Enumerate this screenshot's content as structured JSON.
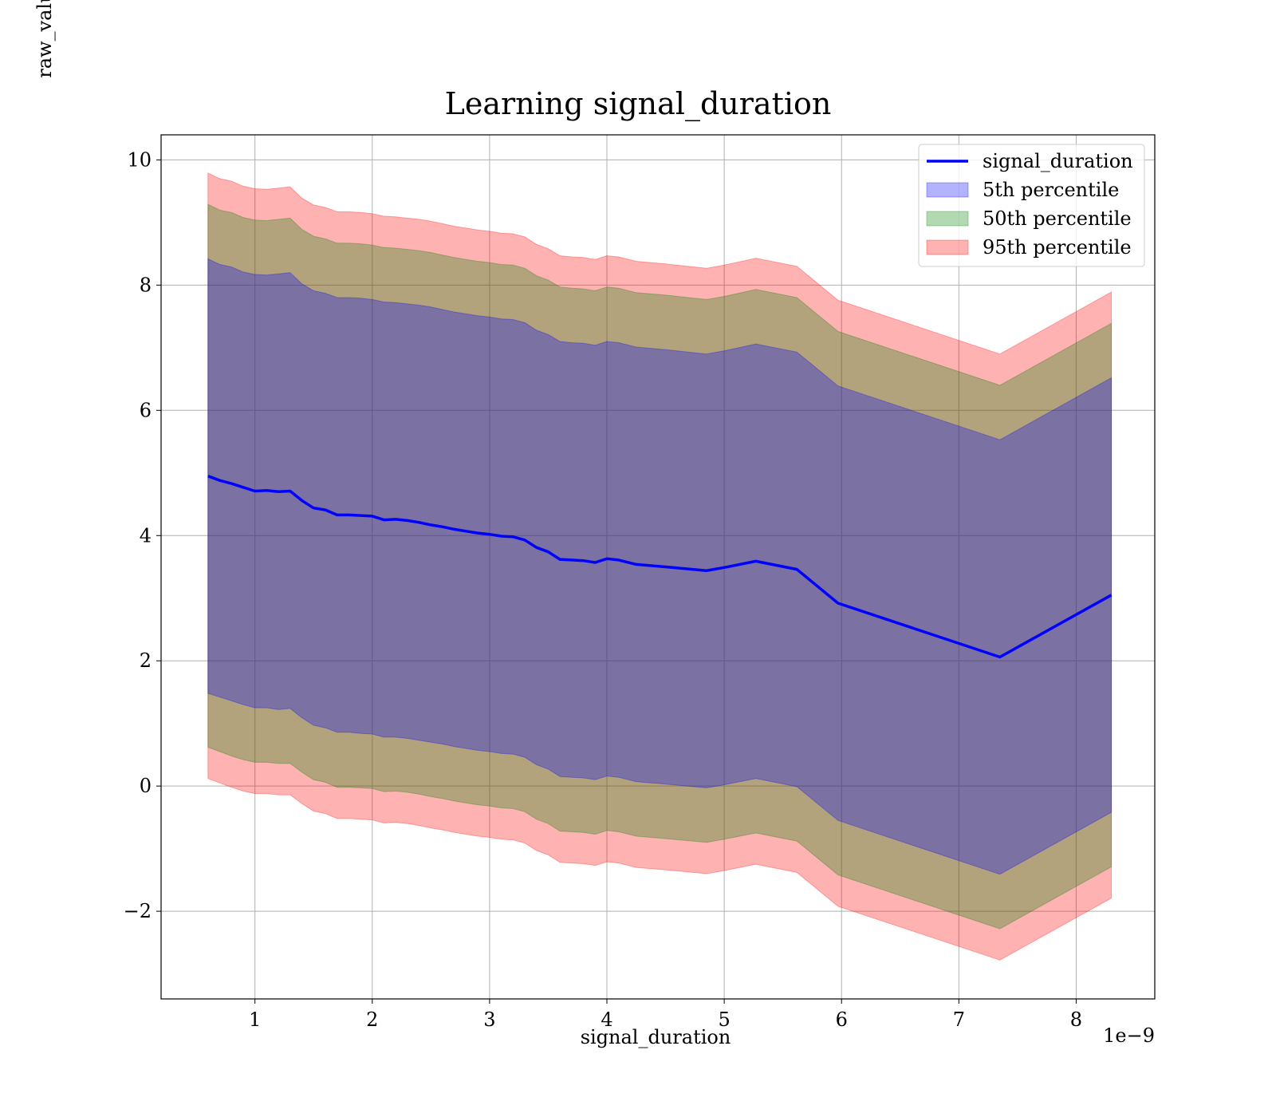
{
  "chart_data": {
    "type": "area",
    "title": "Learning signal_duration",
    "xlabel": "signal_duration",
    "ylabel": "raw_value",
    "x_offset_label": "1e−9",
    "x_scale": 1e-09,
    "xlim": [
      0.2,
      8.67
    ],
    "ylim": [
      -3.4,
      10.4
    ],
    "x_ticks": [
      1,
      2,
      3,
      4,
      5,
      6,
      7,
      8
    ],
    "y_ticks": [
      -2,
      0,
      2,
      4,
      6,
      8,
      10
    ],
    "y_tick_labels": [
      "−2",
      "0",
      "2",
      "4",
      "6",
      "8",
      "10"
    ],
    "grid": true,
    "legend_position": "top-right",
    "x": [
      0.6,
      0.7,
      0.8,
      0.9,
      1.0,
      1.1,
      1.2,
      1.3,
      1.4,
      1.5,
      1.6,
      1.7,
      1.8,
      1.9,
      2.0,
      2.1,
      2.2,
      2.3,
      2.4,
      2.5,
      2.6,
      2.7,
      2.8,
      2.9,
      3.0,
      3.1,
      3.2,
      3.3,
      3.4,
      3.5,
      3.6,
      3.7,
      3.8,
      3.9,
      4.0,
      4.1,
      4.25,
      4.5,
      4.85,
      5.0,
      5.27,
      5.62,
      5.97,
      7.35,
      8.3
    ],
    "line": {
      "name": "signal_duration",
      "color": "#0000ff",
      "values": [
        4.95,
        4.88,
        4.83,
        4.77,
        4.71,
        4.72,
        4.7,
        4.71,
        4.56,
        4.44,
        4.41,
        4.33,
        4.33,
        4.32,
        4.31,
        4.25,
        4.26,
        4.24,
        4.21,
        4.17,
        4.14,
        4.1,
        4.07,
        4.04,
        4.02,
        3.99,
        3.98,
        3.93,
        3.81,
        3.74,
        3.62,
        3.61,
        3.6,
        3.57,
        3.63,
        3.61,
        3.54,
        3.5,
        3.44,
        3.49,
        3.59,
        3.46,
        2.92,
        2.06,
        3.05
      ]
    },
    "bands": [
      {
        "name": "95th percentile",
        "color": "#ff0000",
        "opacity": 0.3,
        "upper": [
          9.79,
          9.7,
          9.66,
          9.58,
          9.54,
          9.53,
          9.55,
          9.57,
          9.39,
          9.28,
          9.24,
          9.17,
          9.17,
          9.16,
          9.14,
          9.1,
          9.09,
          9.07,
          9.05,
          9.02,
          8.98,
          8.94,
          8.91,
          8.88,
          8.86,
          8.83,
          8.82,
          8.77,
          8.65,
          8.58,
          8.47,
          8.45,
          8.44,
          8.41,
          8.47,
          8.45,
          8.38,
          8.34,
          8.27,
          8.32,
          8.43,
          8.3,
          7.76,
          6.9,
          7.89
        ],
        "lower": [
          0.12,
          0.05,
          -0.02,
          -0.08,
          -0.12,
          -0.12,
          -0.14,
          -0.14,
          -0.28,
          -0.4,
          -0.44,
          -0.52,
          -0.52,
          -0.53,
          -0.54,
          -0.59,
          -0.58,
          -0.6,
          -0.63,
          -0.67,
          -0.7,
          -0.74,
          -0.77,
          -0.8,
          -0.82,
          -0.85,
          -0.86,
          -0.91,
          -1.03,
          -1.1,
          -1.22,
          -1.23,
          -1.24,
          -1.27,
          -1.21,
          -1.23,
          -1.3,
          -1.34,
          -1.4,
          -1.35,
          -1.25,
          -1.38,
          -1.92,
          -2.78,
          -1.79
        ]
      },
      {
        "name": "50th percentile",
        "color": "#008000",
        "opacity": 0.3,
        "upper": [
          9.29,
          9.2,
          9.16,
          9.08,
          9.04,
          9.03,
          9.05,
          9.07,
          8.89,
          8.78,
          8.74,
          8.67,
          8.67,
          8.66,
          8.64,
          8.6,
          8.59,
          8.57,
          8.55,
          8.52,
          8.48,
          8.44,
          8.41,
          8.38,
          8.36,
          8.33,
          8.32,
          8.27,
          8.15,
          8.08,
          7.97,
          7.95,
          7.94,
          7.91,
          7.97,
          7.95,
          7.88,
          7.84,
          7.77,
          7.82,
          7.93,
          7.8,
          7.26,
          6.4,
          7.39
        ],
        "lower": [
          0.62,
          0.55,
          0.48,
          0.42,
          0.38,
          0.38,
          0.36,
          0.36,
          0.22,
          0.1,
          0.06,
          -0.02,
          -0.02,
          -0.03,
          -0.04,
          -0.09,
          -0.08,
          -0.1,
          -0.13,
          -0.17,
          -0.2,
          -0.24,
          -0.27,
          -0.3,
          -0.32,
          -0.35,
          -0.36,
          -0.41,
          -0.53,
          -0.6,
          -0.72,
          -0.73,
          -0.74,
          -0.77,
          -0.71,
          -0.73,
          -0.8,
          -0.84,
          -0.9,
          -0.85,
          -0.75,
          -0.88,
          -1.42,
          -2.28,
          -1.29
        ]
      },
      {
        "name": "5th percentile",
        "color": "#0000ff",
        "opacity": 0.3,
        "upper": [
          8.42,
          8.33,
          8.29,
          8.21,
          8.17,
          8.16,
          8.18,
          8.2,
          8.02,
          7.91,
          7.87,
          7.8,
          7.8,
          7.79,
          7.77,
          7.73,
          7.72,
          7.7,
          7.68,
          7.65,
          7.61,
          7.57,
          7.54,
          7.51,
          7.49,
          7.46,
          7.45,
          7.4,
          7.28,
          7.21,
          7.1,
          7.08,
          7.07,
          7.04,
          7.1,
          7.08,
          7.01,
          6.97,
          6.9,
          6.95,
          7.06,
          6.93,
          6.39,
          5.53,
          6.52
        ],
        "lower": [
          1.48,
          1.42,
          1.36,
          1.3,
          1.25,
          1.25,
          1.22,
          1.24,
          1.09,
          0.97,
          0.93,
          0.86,
          0.86,
          0.84,
          0.83,
          0.78,
          0.78,
          0.76,
          0.73,
          0.7,
          0.67,
          0.63,
          0.6,
          0.57,
          0.55,
          0.52,
          0.51,
          0.46,
          0.34,
          0.27,
          0.15,
          0.14,
          0.13,
          0.1,
          0.16,
          0.14,
          0.07,
          0.03,
          -0.03,
          0.02,
          0.12,
          -0.01,
          -0.55,
          -1.41,
          -0.42
        ]
      }
    ],
    "legend": [
      {
        "label": "signal_duration",
        "kind": "line",
        "color": "#0000ff"
      },
      {
        "label": "5th percentile",
        "kind": "patch",
        "color": "#0000ff"
      },
      {
        "label": "50th percentile",
        "kind": "patch",
        "color": "#008000"
      },
      {
        "label": "95th percentile",
        "kind": "patch",
        "color": "#ff0000"
      }
    ]
  }
}
